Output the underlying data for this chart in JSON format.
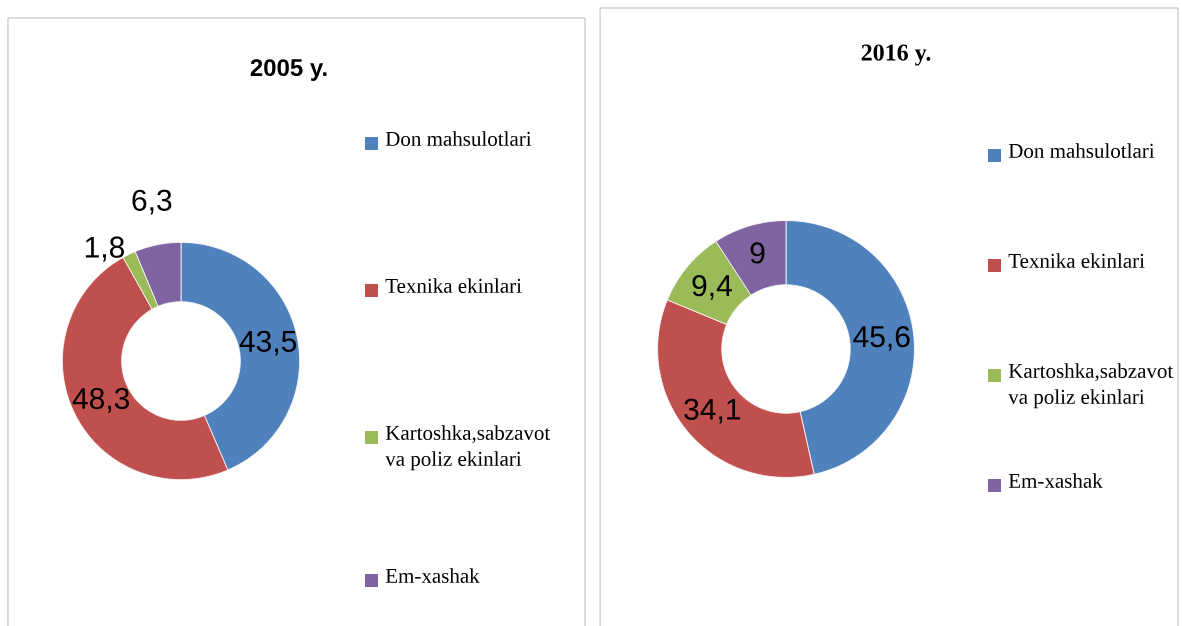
{
  "chart_data": [
    {
      "type": "donut",
      "title": "2005 y.",
      "categories": [
        "Don mahsulotlari",
        "Texnika ekinlari",
        "Kartoshka,sabzavot va poliz ekinlari",
        "Em-xashak"
      ],
      "values": [
        43.5,
        48.3,
        1.8,
        6.3
      ],
      "value_labels": [
        "43,5",
        "48,3",
        "1,8",
        "6,3"
      ],
      "colors": [
        "#4f81bd",
        "#c0504d",
        "#9bbb59",
        "#8064a2"
      ],
      "legend": "right"
    },
    {
      "type": "donut",
      "title": "2016 y.",
      "categories": [
        "Don mahsulotlari",
        "Texnika ekinlari",
        "Kartoshka,sabzavot va poliz ekinlari",
        "Em-xashak"
      ],
      "values": [
        45.6,
        34.1,
        9.4,
        9
      ],
      "value_labels": [
        "45,6",
        "34,1",
        "9,4",
        "9"
      ],
      "colors": [
        "#4f81bd",
        "#c0504d",
        "#9bbb59",
        "#8064a2"
      ],
      "legend": "right"
    }
  ]
}
